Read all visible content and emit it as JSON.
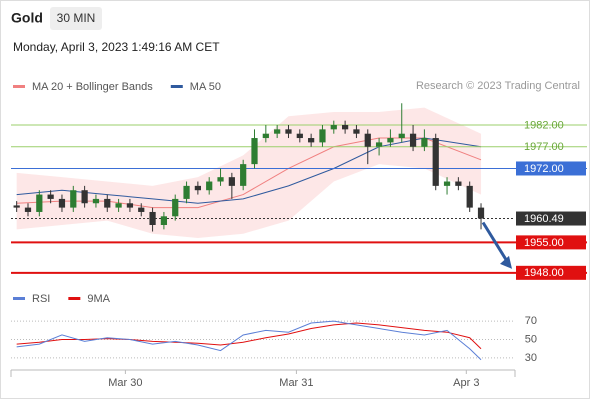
{
  "header": {
    "symbol": "Gold",
    "interval": "30 MIN",
    "timestamp": "Monday, April 3, 2023 1:49:16 AM CET"
  },
  "chart_data": {
    "type": "candlestick",
    "legend": [
      {
        "name": "MA 20 + Bollinger Bands",
        "color": "#f08080"
      },
      {
        "name": "MA 50",
        "color": "#2f5a9e"
      }
    ],
    "credit": "Research © 2023 Trading Central",
    "xlim": [
      -0.5,
      44
    ],
    "xticks": [
      {
        "value": 9.6,
        "label": "Mar 30"
      },
      {
        "value": 24.7,
        "label": "Mar 31"
      },
      {
        "value": 39.7,
        "label": "Apr 3"
      }
    ],
    "ylim": [
      1945.2,
      1988.9
    ],
    "up_color": "#2e7d32",
    "down_color": "#333333",
    "open": [
      1963.5,
      1963,
      1962,
      1966,
      1965,
      1963,
      1967,
      1964,
      1965,
      1963,
      1964,
      1963,
      1962,
      1959,
      1961,
      1965,
      1968,
      1967,
      1969,
      1970,
      1968,
      1973,
      1979,
      1980,
      1981,
      1980,
      1979,
      1978,
      1981,
      1982,
      1981,
      1980,
      1977,
      1978,
      1979,
      1980,
      1977,
      1979,
      1968,
      1969,
      1968,
      1963
    ],
    "high": [
      1964.5,
      1964,
      1967,
      1967,
      1966,
      1968,
      1968,
      1966,
      1966,
      1965,
      1965,
      1964,
      1963,
      1962,
      1966,
      1969,
      1969,
      1970,
      1972,
      1971,
      1974,
      1981,
      1982,
      1982,
      1982,
      1981,
      1980,
      1982,
      1983,
      1983,
      1982,
      1981,
      1979,
      1981,
      1987,
      1982,
      1981,
      1980,
      1970,
      1970,
      1969,
      1964
    ],
    "low": [
      1962,
      1961,
      1961,
      1964,
      1962,
      1962,
      1963,
      1963,
      1962,
      1962,
      1962,
      1961,
      1957.5,
      1958,
      1960,
      1964,
      1966,
      1966,
      1968,
      1965,
      1967,
      1972,
      1978,
      1979,
      1979,
      1978,
      1977,
      1977,
      1980,
      1980,
      1979,
      1973,
      1975,
      1977,
      1978,
      1976,
      1976,
      1967,
      1966,
      1967,
      1962,
      1958
    ],
    "close": [
      1963,
      1962,
      1966,
      1965,
      1963,
      1967,
      1964,
      1965,
      1963,
      1964,
      1963,
      1962,
      1959,
      1961,
      1965,
      1968,
      1967,
      1969,
      1970,
      1968,
      1973,
      1979,
      1980,
      1981,
      1980,
      1979,
      1978,
      1981,
      1982,
      1981,
      1980,
      1977,
      1978,
      1979,
      1980,
      1977,
      1979,
      1968,
      1969,
      1968,
      1963,
      1960.49
    ],
    "indicator_x": [
      0,
      4,
      8,
      12,
      16,
      20,
      24,
      28,
      32,
      36,
      41
    ],
    "ma20": [
      1964,
      1964.5,
      1964.5,
      1963,
      1963,
      1966,
      1972,
      1977,
      1979,
      1979,
      1974
    ],
    "bb_upper": [
      1971,
      1970,
      1969,
      1968,
      1970,
      1975,
      1984,
      1985,
      1985,
      1986,
      1980
    ],
    "bb_lower": [
      1958,
      1959,
      1960,
      1957,
      1956,
      1957,
      1960,
      1969,
      1973,
      1972,
      1966
    ],
    "ma50": [
      1966,
      1967,
      1966,
      1965,
      1964,
      1965,
      1968,
      1972,
      1977,
      1979,
      1977
    ],
    "levels": [
      {
        "value": 1982,
        "label": "1982.00",
        "color": "#9bcf6b",
        "boxed": false
      },
      {
        "value": 1977,
        "label": "1977.00",
        "color": "#9bcf6b",
        "boxed": false
      },
      {
        "value": 1972,
        "label": "1972.00",
        "color": "#3b6fd6",
        "boxed": true
      },
      {
        "value": 1960.49,
        "label": "1960.49",
        "color": "#333333",
        "boxed": true,
        "dotted": true
      },
      {
        "value": 1955,
        "label": "1955.00",
        "color": "#e01010",
        "boxed": true
      },
      {
        "value": 1948,
        "label": "1948.00",
        "color": "#e01010",
        "boxed": true
      }
    ],
    "rsi": {
      "legend": [
        {
          "name": "RSI",
          "color": "#5b7fd6"
        },
        {
          "name": "9MA",
          "color": "#e01010"
        }
      ],
      "ylim": [
        19,
        80
      ],
      "yticks": [
        70,
        50,
        30
      ],
      "x": [
        0,
        2,
        4,
        6,
        8,
        10,
        12,
        14,
        16,
        18,
        20,
        22,
        24,
        26,
        28,
        30,
        32,
        34,
        36,
        38,
        40,
        41
      ],
      "rsi": [
        42,
        45,
        55,
        48,
        52,
        50,
        45,
        48,
        44,
        38,
        55,
        60,
        58,
        68,
        70,
        66,
        62,
        58,
        55,
        60,
        40,
        28
      ],
      "ma9": [
        45,
        47,
        50,
        50,
        51,
        50,
        48,
        47,
        46,
        44,
        47,
        52,
        56,
        62,
        66,
        68,
        66,
        63,
        60,
        58,
        52,
        40
      ]
    }
  }
}
